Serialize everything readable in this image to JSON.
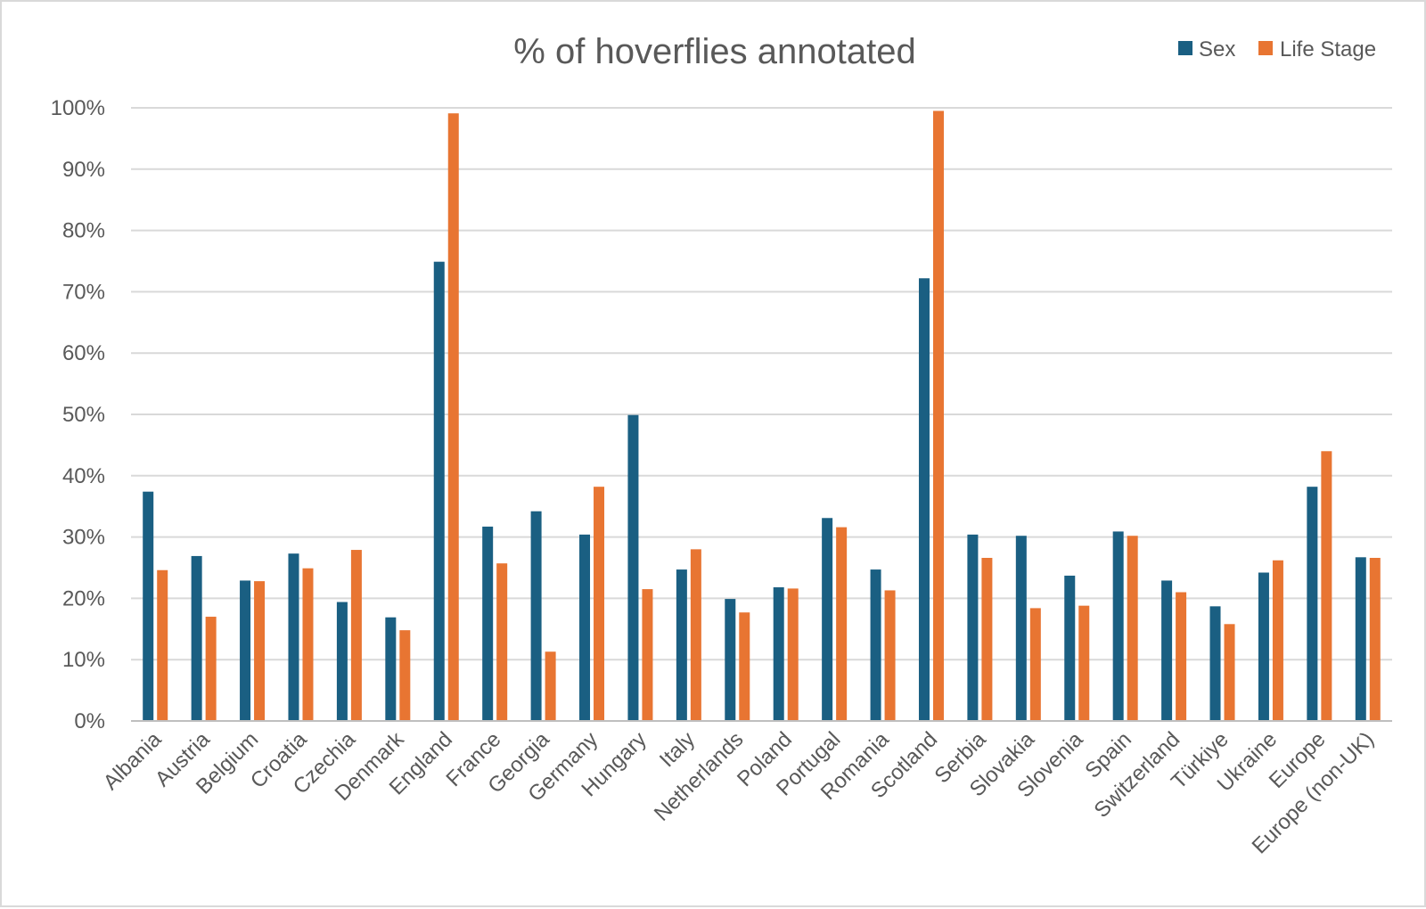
{
  "chart_data": {
    "type": "bar",
    "title": "% of hoverflies annotated",
    "xlabel": "",
    "ylabel": "",
    "ylim": [
      0,
      100
    ],
    "yticks": [
      "0%",
      "10%",
      "20%",
      "30%",
      "40%",
      "50%",
      "60%",
      "70%",
      "80%",
      "90%",
      "100%"
    ],
    "grid": true,
    "legend_position": "top-right",
    "categories": [
      "Albania",
      "Austria",
      "Belgium",
      "Croatia",
      "Czechia",
      "Denmark",
      "England",
      "France",
      "Georgia",
      "Germany",
      "Hungary",
      "Italy",
      "Netherlands",
      "Poland",
      "Portugal",
      "Romania",
      "Scotland",
      "Serbia",
      "Slovakia",
      "Slovenia",
      "Spain",
      "Switzerland",
      "Türkiye",
      "Ukraine",
      "Europe",
      "Europe (non-UK)"
    ],
    "series": [
      {
        "name": "Sex",
        "color": "#1a5f82",
        "values": [
          37.4,
          26.9,
          22.9,
          27.3,
          19.4,
          16.9,
          74.9,
          31.7,
          34.2,
          30.4,
          49.9,
          24.7,
          19.9,
          21.8,
          33.1,
          24.7,
          72.2,
          30.4,
          30.2,
          23.7,
          30.9,
          22.9,
          18.7,
          24.2,
          38.2,
          26.7
        ]
      },
      {
        "name": "Life Stage",
        "color": "#e87532",
        "values": [
          24.6,
          17.0,
          22.8,
          24.9,
          27.9,
          14.8,
          99.1,
          25.7,
          11.3,
          38.2,
          21.5,
          28.0,
          17.7,
          21.6,
          31.6,
          21.3,
          99.5,
          26.6,
          18.4,
          18.8,
          30.2,
          21.0,
          15.8,
          26.2,
          44.0,
          26.6
        ]
      }
    ]
  }
}
